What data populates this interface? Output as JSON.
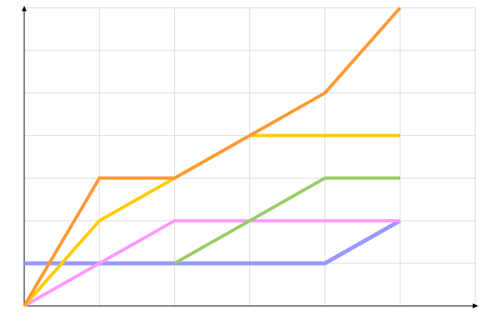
{
  "chart_data": {
    "type": "line",
    "title": "",
    "xlabel": "",
    "ylabel": "",
    "x": [
      0,
      1,
      2,
      3,
      4,
      5
    ],
    "xlim": [
      0,
      6
    ],
    "ylim": [
      0,
      7
    ],
    "grid": true,
    "legend": "none",
    "series": [
      {
        "color": "#9999ff",
        "points": [
          [
            0,
            1
          ],
          [
            1,
            1
          ],
          [
            2,
            1
          ],
          [
            3,
            1
          ],
          [
            4,
            1
          ],
          [
            5,
            2
          ]
        ]
      },
      {
        "color": "#ff99ff",
        "points": [
          [
            0,
            0
          ],
          [
            1,
            1
          ],
          [
            2,
            2
          ],
          [
            3,
            2
          ],
          [
            4,
            2
          ],
          [
            5,
            2
          ]
        ]
      },
      {
        "color": "#99cc66",
        "points": [
          [
            2,
            1
          ],
          [
            3,
            2
          ],
          [
            4,
            3
          ],
          [
            5,
            3
          ]
        ]
      },
      {
        "color": "#ffcc00",
        "points": [
          [
            0,
            0
          ],
          [
            1,
            2
          ],
          [
            2,
            3
          ],
          [
            3,
            4
          ],
          [
            4,
            4
          ],
          [
            5,
            4
          ]
        ]
      },
      {
        "color": "#ff9933",
        "points": [
          [
            0,
            0
          ],
          [
            1,
            3
          ],
          [
            2,
            3
          ],
          [
            3,
            4
          ],
          [
            4,
            5
          ],
          [
            5,
            7
          ]
        ]
      }
    ]
  }
}
